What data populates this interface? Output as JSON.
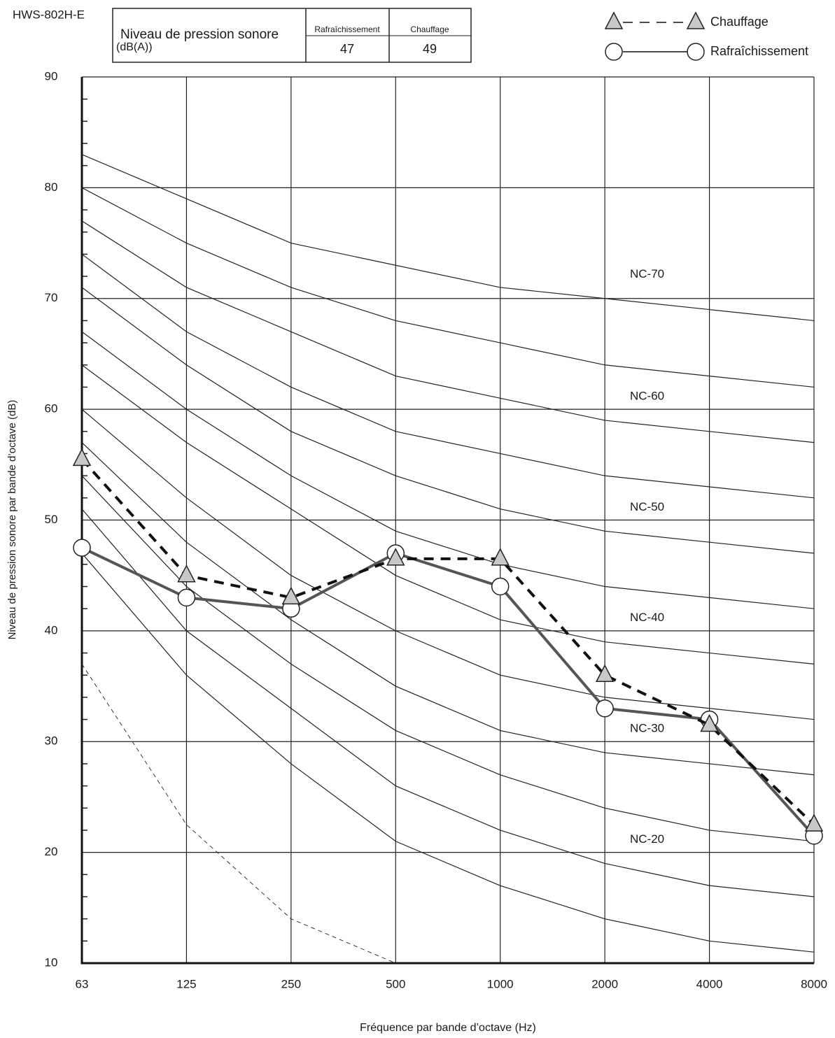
{
  "chart_data": {
    "type": "line",
    "model": "HWS-802H-E",
    "table": {
      "label_lines": [
        "Niveau de pression sonore",
        "(dB(A))"
      ],
      "columns": [
        "Rafraîchissement",
        "Chauffage"
      ],
      "values": [
        47,
        49
      ]
    },
    "categories": [
      "63",
      "125",
      "250",
      "500",
      "1000",
      "2000",
      "4000",
      "8000"
    ],
    "series": [
      {
        "name": "Chauffage",
        "color": "#555555",
        "marker": "triangle",
        "dashed": true,
        "values": [
          55.5,
          45,
          43,
          46.5,
          46.5,
          36,
          31.5,
          22.5
        ]
      },
      {
        "name": "Rafraîchissement",
        "color": "#555555",
        "marker": "circle",
        "dashed": false,
        "values": [
          47.5,
          43,
          42,
          47,
          44,
          33,
          32,
          21.5
        ]
      }
    ],
    "reference_curves": [
      {
        "label": "NC-70",
        "values": [
          83,
          79,
          75,
          73,
          71,
          70,
          69,
          68
        ]
      },
      {
        "values": [
          80,
          75,
          71,
          68,
          66,
          64,
          63,
          62
        ]
      },
      {
        "label": "NC-60",
        "values": [
          77,
          71,
          67,
          63,
          61,
          59,
          58,
          57
        ]
      },
      {
        "values": [
          74,
          67,
          62,
          58,
          56,
          54,
          53,
          52
        ]
      },
      {
        "label": "NC-50",
        "values": [
          71,
          64,
          58,
          54,
          51,
          49,
          48,
          47
        ]
      },
      {
        "values": [
          67,
          60,
          54,
          49,
          46,
          44,
          43,
          42
        ]
      },
      {
        "label": "NC-40",
        "values": [
          64,
          57,
          51,
          45,
          41,
          39,
          38,
          37
        ]
      },
      {
        "values": [
          60,
          52,
          45,
          40,
          36,
          34,
          33,
          32
        ]
      },
      {
        "label": "NC-30",
        "values": [
          57,
          48,
          41,
          35,
          31,
          29,
          28,
          27
        ]
      },
      {
        "values": [
          54,
          44,
          37,
          31,
          27,
          24,
          22,
          21
        ]
      },
      {
        "label": "NC-20",
        "values": [
          51,
          40,
          33,
          26,
          22,
          19,
          17,
          16
        ]
      },
      {
        "values": [
          47,
          36,
          28,
          21,
          17,
          14,
          12,
          11
        ]
      },
      {
        "dashed": true,
        "values": [
          37,
          22.5,
          14,
          10,
          null,
          null,
          null,
          null
        ]
      }
    ],
    "ylim": [
      10,
      90
    ],
    "yticks": [
      10,
      20,
      30,
      40,
      50,
      60,
      70,
      80,
      90
    ],
    "yminorticks": [
      12,
      14,
      16,
      18,
      22,
      24,
      26,
      28,
      32,
      34,
      36,
      38,
      42,
      44,
      46,
      48,
      52,
      54,
      56,
      58,
      62,
      64,
      66,
      68,
      72,
      74,
      76,
      78,
      82,
      84,
      86,
      88
    ],
    "ylabel": "Niveau de pression sonore par bande d’octave (dB)",
    "xlabel": "Fréquence par bande d’octave (Hz)",
    "grid": true,
    "legend": "top-right"
  }
}
